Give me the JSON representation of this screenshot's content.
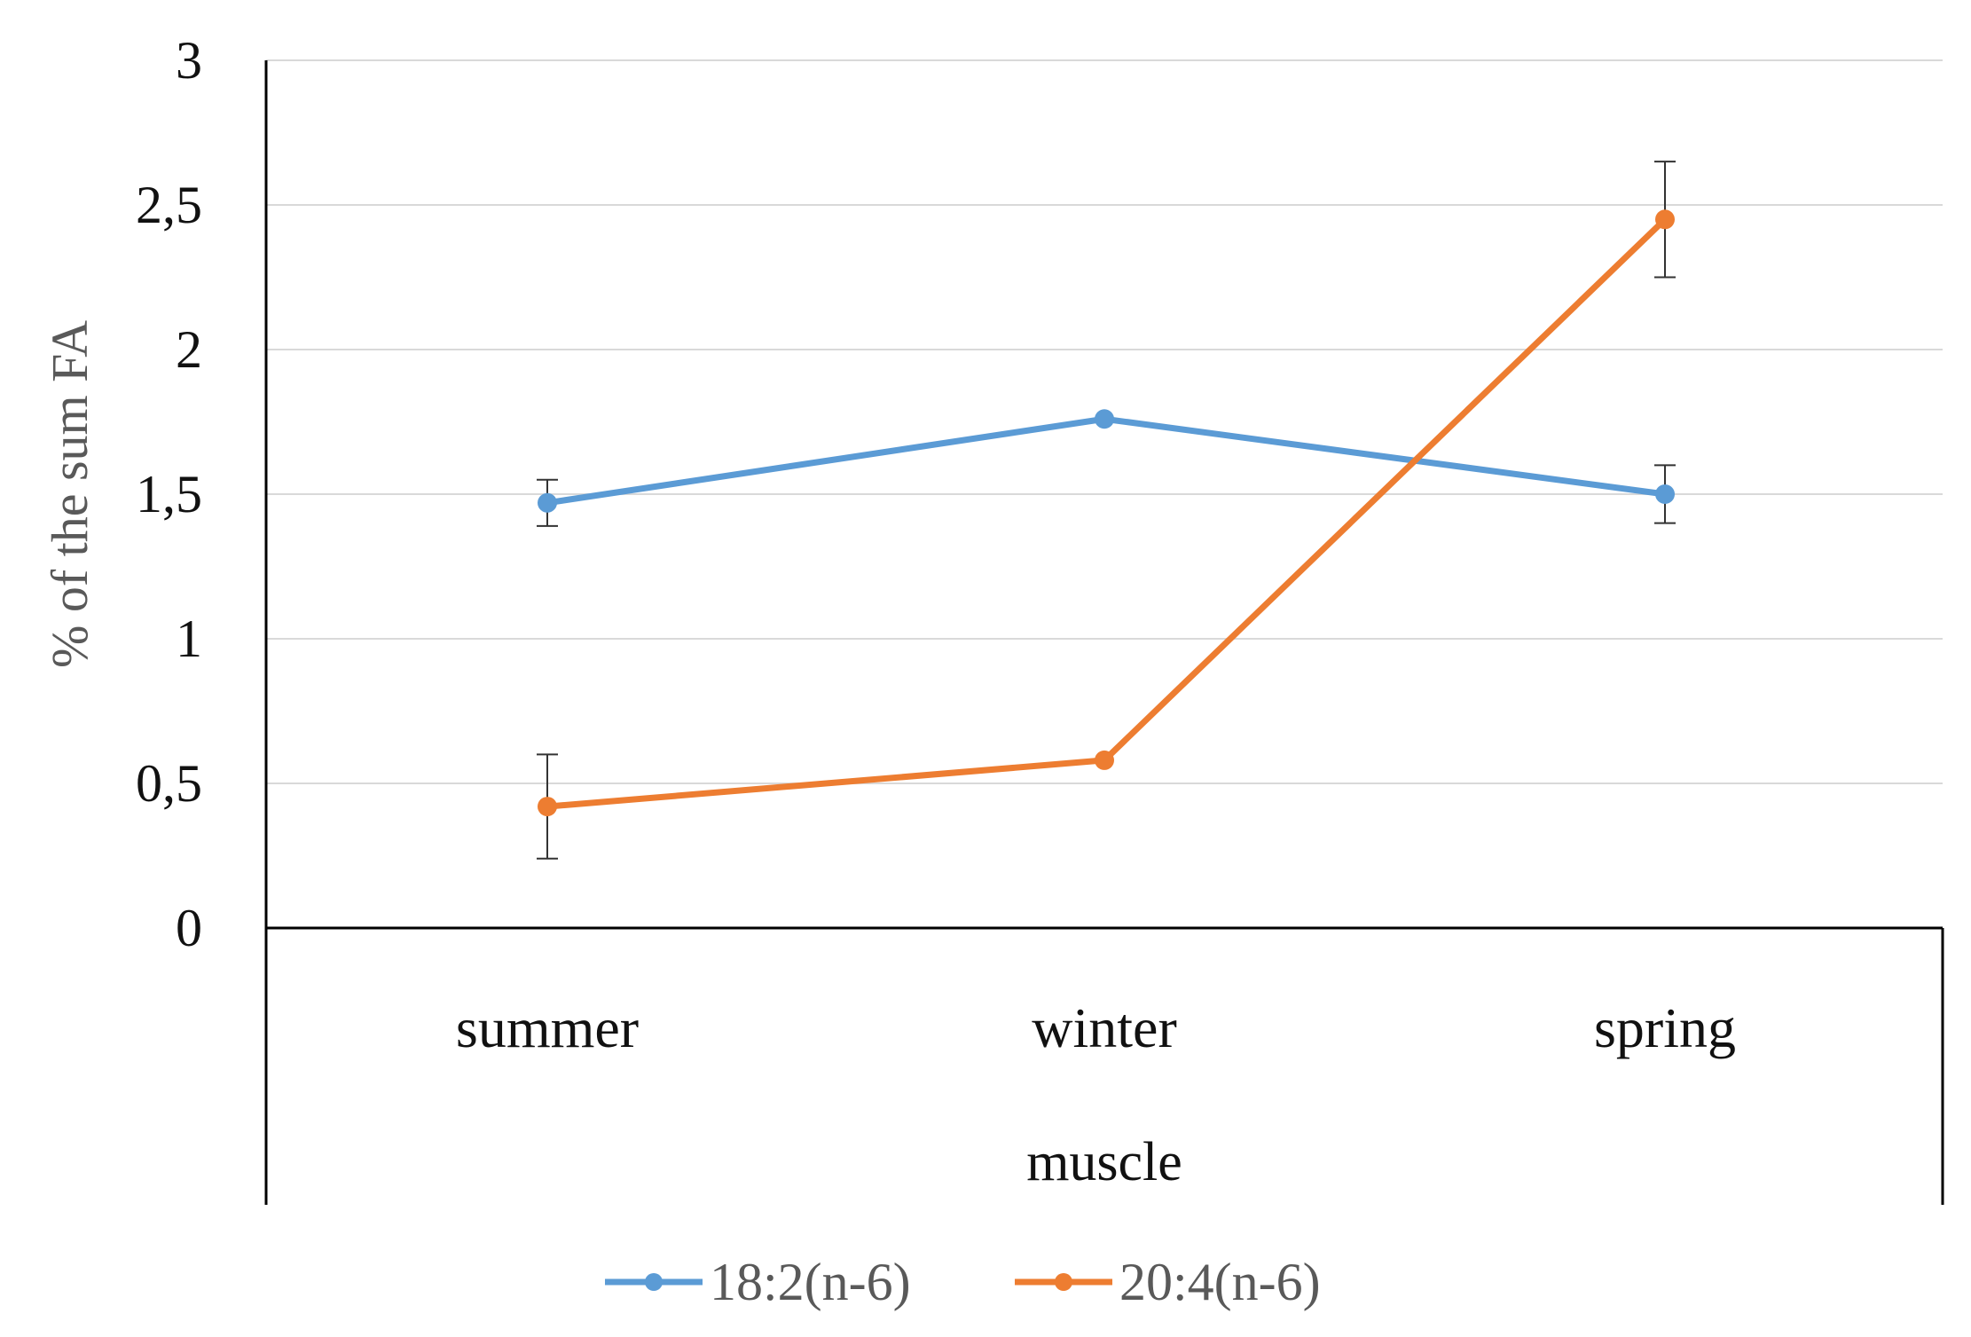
{
  "chart_data": {
    "type": "line",
    "categories": [
      "summer",
      "winter",
      "spring"
    ],
    "series": [
      {
        "name": "18:2(n-6)",
        "color": "#5B9BD5",
        "values": [
          1.47,
          1.76,
          1.5
        ],
        "errors": [
          0.08,
          0.02,
          0.1
        ]
      },
      {
        "name": "20:4(n-6)",
        "color": "#ED7D31",
        "values": [
          0.42,
          0.58,
          2.45
        ],
        "errors": [
          0.18,
          0.02,
          0.2
        ]
      }
    ],
    "ylim": [
      0,
      3
    ],
    "yticks": [
      0,
      0.5,
      1,
      1.5,
      2,
      2.5,
      3
    ],
    "ytick_labels": [
      "0",
      "0,5",
      "1",
      "1,5",
      "2",
      "2,5",
      "3"
    ],
    "xlabel": "muscle",
    "ylabel": "% of the sum FA",
    "grid": true,
    "gridline_color": "#D9D9D9",
    "legend_position": "bottom"
  }
}
